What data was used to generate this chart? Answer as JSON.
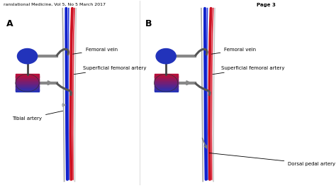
{
  "header_text": "ranslational Medicine, Vol 5, No 5 March 2017",
  "page_text": "Page 3",
  "panel_A_label": "A",
  "panel_B_label": "B",
  "pump_upper_color": "#2233bb",
  "pump_lower_color_top": "#3344cc",
  "pump_lower_color_bot": "#cc2244",
  "tube_color": "#888888",
  "cannula_color": "#555555",
  "blue_vessel_color": "#1122cc",
  "red_vessel_color": "#cc1122",
  "blue2_vessel_color": "#3344dd",
  "red2_vessel_color": "#dd3344",
  "gray1_vessel_color": "#aaaaaa",
  "gray2_vessel_color": "#cccccc",
  "label_femoral_vein": "Femoral vein",
  "label_superficial_femoral": "Superficial femoral artery",
  "label_tibial": "Tibial artery",
  "label_dorsal": "Dorsal pedal artery"
}
